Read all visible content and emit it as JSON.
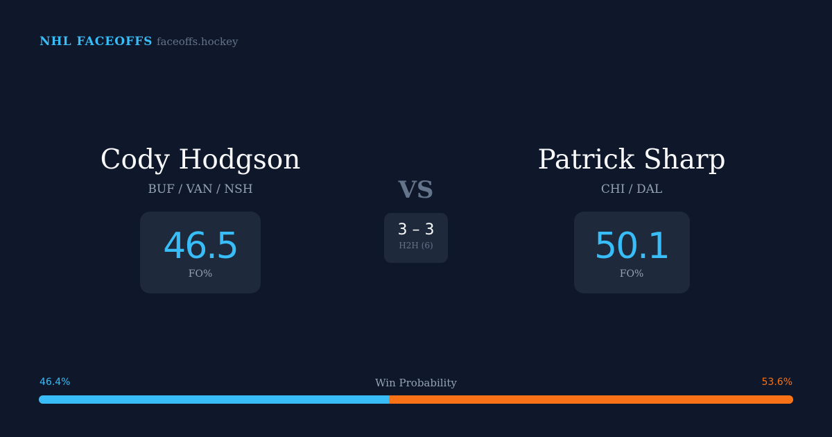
{
  "header": {
    "brand": "NHL FACEOFFS",
    "domain": "faceoffs.hockey"
  },
  "player1": {
    "name": "Cody Hodgson",
    "teams": "BUF / VAN / NSH",
    "fo_pct": "46.5",
    "fo_label": "FO%"
  },
  "player2": {
    "name": "Patrick Sharp",
    "teams": "CHI / DAL",
    "fo_pct": "50.1",
    "fo_label": "FO%"
  },
  "vs": "VS",
  "h2h": {
    "score": "3 – 3",
    "label": "H2H (6)"
  },
  "win_probability": {
    "title": "Win Probability",
    "left": "46.4%",
    "right": "53.6%",
    "left_value": 46.4,
    "right_value": 53.6,
    "left_color": "#38bdf8",
    "right_color": "#f97316"
  }
}
